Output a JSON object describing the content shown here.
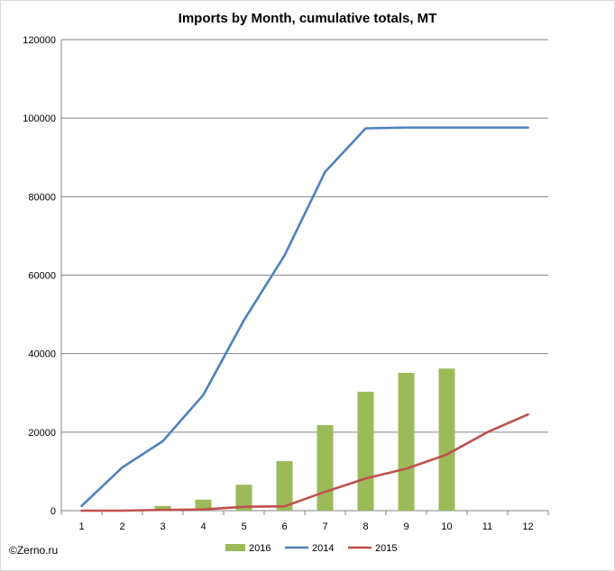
{
  "watermark": "©Zerno.ru",
  "chart_data": {
    "type": "bar+line",
    "title": "Imports by Month, cumulative totals, MT",
    "xlabel": "",
    "ylabel": "",
    "categories": [
      1,
      2,
      3,
      4,
      5,
      6,
      7,
      8,
      9,
      10,
      11,
      12
    ],
    "ylim": [
      0,
      120000
    ],
    "yticks": [
      0,
      20000,
      40000,
      60000,
      80000,
      100000,
      120000
    ],
    "grid": true,
    "legend_position": "bottom",
    "series": [
      {
        "name": "2016",
        "kind": "bar",
        "color": "#9bbb59",
        "values": [
          0,
          0,
          1200,
          2800,
          6600,
          12600,
          21800,
          30300,
          35100,
          36200,
          null,
          null
        ]
      },
      {
        "name": "2014",
        "kind": "line",
        "color": "#4f81bd",
        "values": [
          1200,
          11000,
          17700,
          29500,
          48500,
          65000,
          86300,
          97400,
          97600,
          97600,
          97600,
          97600
        ]
      },
      {
        "name": "2015",
        "kind": "line",
        "color": "#c0504d",
        "values": [
          0,
          0,
          200,
          300,
          1000,
          1100,
          4800,
          8200,
          10700,
          14300,
          20000,
          24500
        ]
      }
    ]
  }
}
